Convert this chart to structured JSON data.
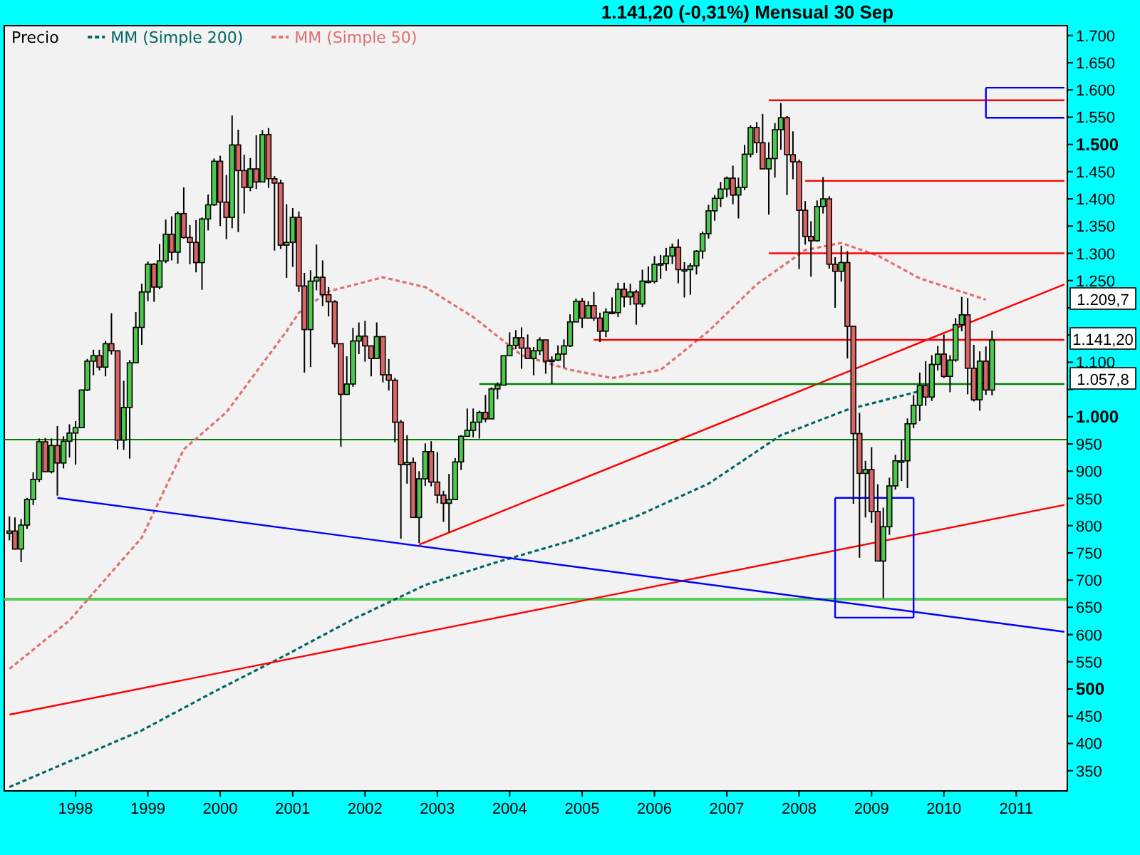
{
  "chart_data": {
    "type": "candlestick",
    "title": "1.141,20 (-0,31%)   Mensual  30 Sep",
    "legend": "top left",
    "xlim": [
      "1997-01-06",
      "2011-09-16"
    ],
    "ylim": [
      313,
      1718
    ],
    "xticks": [
      "1998",
      "1999",
      "2000",
      "2001",
      "2002",
      "2003",
      "2004",
      "2005",
      "2006",
      "2007",
      "2008",
      "2009",
      "2010",
      "2011"
    ],
    "yticks": [
      {
        "value": 350,
        "label": "350"
      },
      {
        "value": 400,
        "label": "400"
      },
      {
        "value": 450,
        "label": "450"
      },
      {
        "value": 500,
        "label": "500"
      },
      {
        "value": 550,
        "label": "550"
      },
      {
        "value": 600,
        "label": "600"
      },
      {
        "value": 650,
        "label": "650"
      },
      {
        "value": 700,
        "label": "700"
      },
      {
        "value": 750,
        "label": "750"
      },
      {
        "value": 800,
        "label": "800"
      },
      {
        "value": 850,
        "label": "850"
      },
      {
        "value": 900,
        "label": "900"
      },
      {
        "value": 950,
        "label": "950"
      },
      {
        "value": 1000,
        "label": "1.000"
      },
      {
        "value": 1050,
        "label": null
      },
      {
        "value": 1100,
        "label": "1.100"
      },
      {
        "value": 1150,
        "label": null
      },
      {
        "value": 1200,
        "label": null
      },
      {
        "value": 1250,
        "label": "1.250"
      },
      {
        "value": 1300,
        "label": "1.300"
      },
      {
        "value": 1350,
        "label": "1.350"
      },
      {
        "value": 1400,
        "label": "1.400"
      },
      {
        "value": 1450,
        "label": "1.450"
      },
      {
        "value": 1500,
        "label": "1.500"
      },
      {
        "value": 1550,
        "label": "1.550"
      },
      {
        "value": 1600,
        "label": "1.600"
      },
      {
        "value": 1650,
        "label": "1.650"
      },
      {
        "value": 1700,
        "label": "1.700"
      }
    ],
    "ref_lines": [
      {
        "axis": "y",
        "value": 958,
        "label": null,
        "color": "#008000"
      },
      {
        "axis": "y",
        "value": 665,
        "label": null,
        "color": "#55cc55"
      }
    ],
    "annotations": [
      "1.209,7",
      "1.141,20",
      "1.057,8"
    ],
    "series": [
      {
        "name": "Precio",
        "x": [
          "1997-02",
          "1997-03",
          "1997-04",
          "1997-05",
          "1997-06",
          "1997-07",
          "1997-08",
          "1997-09",
          "1997-10",
          "1997-11",
          "1997-12",
          "1998-01",
          "1998-02",
          "1998-03",
          "1998-04",
          "1998-05",
          "1998-06",
          "1998-07",
          "1998-08",
          "1998-09",
          "1998-10",
          "1998-11",
          "1998-12",
          "1999-01",
          "1999-02",
          "1999-03",
          "1999-04",
          "1999-05",
          "1999-06",
          "1999-07",
          "1999-08",
          "1999-09",
          "1999-10",
          "1999-11",
          "1999-12",
          "2000-01",
          "2000-02",
          "2000-03",
          "2000-04",
          "2000-05",
          "2000-06",
          "2000-07",
          "2000-08",
          "2000-09",
          "2000-10",
          "2000-11",
          "2000-12",
          "2001-01",
          "2001-02",
          "2001-03",
          "2001-04",
          "2001-05",
          "2001-06",
          "2001-07",
          "2001-08",
          "2001-09",
          "2001-10",
          "2001-11",
          "2001-12",
          "2002-01",
          "2002-02",
          "2002-03",
          "2002-04",
          "2002-05",
          "2002-06",
          "2002-07",
          "2002-08",
          "2002-09",
          "2002-10",
          "2002-11",
          "2002-12",
          "2003-01",
          "2003-02",
          "2003-03",
          "2003-04",
          "2003-05",
          "2003-06",
          "2003-07",
          "2003-08",
          "2003-09",
          "2003-10",
          "2003-11",
          "2003-12",
          "2004-01",
          "2004-02",
          "2004-03",
          "2004-04",
          "2004-05",
          "2004-06",
          "2004-07",
          "2004-08",
          "2004-09",
          "2004-10",
          "2004-11",
          "2004-12",
          "2005-01",
          "2005-02",
          "2005-03",
          "2005-04",
          "2005-05",
          "2005-06",
          "2005-07",
          "2005-08",
          "2005-09",
          "2005-10",
          "2005-11",
          "2005-12",
          "2006-01",
          "2006-02",
          "2006-03",
          "2006-04",
          "2006-05",
          "2006-06",
          "2006-07",
          "2006-08",
          "2006-09",
          "2006-10",
          "2006-11",
          "2006-12",
          "2007-01",
          "2007-02",
          "2007-03",
          "2007-04",
          "2007-05",
          "2007-06",
          "2007-07",
          "2007-08",
          "2007-09",
          "2007-10",
          "2007-11",
          "2007-12",
          "2008-01",
          "2008-02",
          "2008-03",
          "2008-04",
          "2008-05",
          "2008-06",
          "2008-07",
          "2008-08",
          "2008-09",
          "2008-10",
          "2008-11",
          "2008-12",
          "2009-01",
          "2009-02",
          "2009-03",
          "2009-04",
          "2009-05",
          "2009-06",
          "2009-07",
          "2009-08",
          "2009-09",
          "2009-10",
          "2009-11",
          "2009-12",
          "2010-01",
          "2010-02",
          "2010-03",
          "2010-04",
          "2010-05",
          "2010-06",
          "2010-07",
          "2010-08",
          "2010-09"
        ],
        "ohlc": [
          [
            786,
            817,
            773,
            790
          ],
          [
            790,
            815,
            756,
            757
          ],
          [
            757,
            812,
            733,
            801
          ],
          [
            801,
            851,
            794,
            848
          ],
          [
            848,
            898,
            838,
            885
          ],
          [
            885,
            960,
            880,
            954
          ],
          [
            954,
            961,
            898,
            899
          ],
          [
            899,
            960,
            896,
            947
          ],
          [
            947,
            983,
            855,
            915
          ],
          [
            915,
            964,
            905,
            955
          ],
          [
            955,
            986,
            925,
            970
          ],
          [
            970,
            992,
            912,
            980
          ],
          [
            980,
            1050,
            980,
            1049
          ],
          [
            1049,
            1106,
            1047,
            1102
          ],
          [
            1102,
            1123,
            1076,
            1112
          ],
          [
            1112,
            1123,
            1085,
            1091
          ],
          [
            1091,
            1139,
            1074,
            1134
          ],
          [
            1134,
            1190,
            1114,
            1121
          ],
          [
            1121,
            1122,
            940,
            957
          ],
          [
            957,
            1066,
            939,
            1017
          ],
          [
            1017,
            1104,
            923,
            1099
          ],
          [
            1099,
            1192,
            1098,
            1164
          ],
          [
            1164,
            1244,
            1132,
            1229
          ],
          [
            1229,
            1285,
            1212,
            1280
          ],
          [
            1280,
            1282,
            1211,
            1238
          ],
          [
            1238,
            1317,
            1234,
            1286
          ],
          [
            1286,
            1362,
            1282,
            1335
          ],
          [
            1335,
            1368,
            1287,
            1302
          ],
          [
            1302,
            1377,
            1281,
            1373
          ],
          [
            1373,
            1421,
            1327,
            1329
          ],
          [
            1329,
            1352,
            1280,
            1320
          ],
          [
            1320,
            1361,
            1265,
            1283
          ],
          [
            1283,
            1366,
            1233,
            1363
          ],
          [
            1363,
            1408,
            1342,
            1389
          ],
          [
            1389,
            1474,
            1387,
            1469
          ],
          [
            1469,
            1479,
            1350,
            1394
          ],
          [
            1394,
            1444,
            1326,
            1366
          ],
          [
            1366,
            1553,
            1346,
            1499
          ],
          [
            1499,
            1527,
            1339,
            1452
          ],
          [
            1452,
            1481,
            1373,
            1421
          ],
          [
            1421,
            1475,
            1414,
            1455
          ],
          [
            1455,
            1517,
            1418,
            1431
          ],
          [
            1431,
            1526,
            1431,
            1518
          ],
          [
            1518,
            1530,
            1420,
            1437
          ],
          [
            1437,
            1442,
            1305,
            1429
          ],
          [
            1429,
            1435,
            1308,
            1315
          ],
          [
            1315,
            1390,
            1255,
            1320
          ],
          [
            1320,
            1383,
            1275,
            1366
          ],
          [
            1366,
            1377,
            1229,
            1240
          ],
          [
            1240,
            1264,
            1081,
            1160
          ],
          [
            1160,
            1269,
            1091,
            1249
          ],
          [
            1249,
            1316,
            1232,
            1256
          ],
          [
            1256,
            1287,
            1203,
            1224
          ],
          [
            1224,
            1238,
            1184,
            1211
          ],
          [
            1211,
            1214,
            1127,
            1134
          ],
          [
            1134,
            1134,
            945,
            1041
          ],
          [
            1041,
            1111,
            1040,
            1060
          ],
          [
            1060,
            1163,
            1055,
            1139
          ],
          [
            1139,
            1173,
            1115,
            1148
          ],
          [
            1148,
            1176,
            1101,
            1130
          ],
          [
            1130,
            1131,
            1074,
            1107
          ],
          [
            1107,
            1173,
            1106,
            1147
          ],
          [
            1147,
            1147,
            1063,
            1077
          ],
          [
            1077,
            1106,
            1048,
            1067
          ],
          [
            1067,
            1071,
            953,
            990
          ],
          [
            990,
            994,
            776,
            912
          ],
          [
            912,
            966,
            877,
            916
          ],
          [
            916,
            925,
            815,
            815
          ],
          [
            815,
            900,
            768,
            886
          ],
          [
            886,
            951,
            873,
            936
          ],
          [
            936,
            955,
            872,
            880
          ],
          [
            880,
            935,
            841,
            856
          ],
          [
            856,
            864,
            807,
            841
          ],
          [
            841,
            895,
            789,
            848
          ],
          [
            848,
            924,
            847,
            917
          ],
          [
            917,
            966,
            902,
            964
          ],
          [
            964,
            1015,
            963,
            975
          ],
          [
            975,
            1015,
            962,
            990
          ],
          [
            990,
            1011,
            960,
            1008
          ],
          [
            1008,
            1040,
            990,
            996
          ],
          [
            996,
            1054,
            996,
            1051
          ],
          [
            1051,
            1063,
            1032,
            1058
          ],
          [
            1058,
            1112,
            1058,
            1112
          ],
          [
            1112,
            1155,
            1112,
            1131
          ],
          [
            1131,
            1159,
            1124,
            1145
          ],
          [
            1145,
            1164,
            1088,
            1126
          ],
          [
            1126,
            1151,
            1107,
            1107
          ],
          [
            1107,
            1128,
            1076,
            1121
          ],
          [
            1121,
            1146,
            1113,
            1141
          ],
          [
            1141,
            1141,
            1079,
            1102
          ],
          [
            1102,
            1111,
            1060,
            1104
          ],
          [
            1104,
            1131,
            1102,
            1115
          ],
          [
            1115,
            1142,
            1090,
            1130
          ],
          [
            1130,
            1188,
            1128,
            1174
          ],
          [
            1174,
            1217,
            1174,
            1212
          ],
          [
            1212,
            1218,
            1163,
            1181
          ],
          [
            1181,
            1212,
            1180,
            1204
          ],
          [
            1204,
            1229,
            1176,
            1181
          ],
          [
            1181,
            1191,
            1137,
            1157
          ],
          [
            1157,
            1199,
            1146,
            1192
          ],
          [
            1192,
            1219,
            1188,
            1191
          ],
          [
            1191,
            1246,
            1183,
            1234
          ],
          [
            1234,
            1246,
            1201,
            1220
          ],
          [
            1220,
            1244,
            1205,
            1229
          ],
          [
            1229,
            1233,
            1169,
            1207
          ],
          [
            1207,
            1270,
            1201,
            1249
          ],
          [
            1249,
            1276,
            1245,
            1248
          ],
          [
            1248,
            1295,
            1245,
            1280
          ],
          [
            1280,
            1297,
            1253,
            1281
          ],
          [
            1281,
            1310,
            1268,
            1295
          ],
          [
            1295,
            1318,
            1280,
            1311
          ],
          [
            1311,
            1326,
            1245,
            1270
          ],
          [
            1270,
            1284,
            1219,
            1270
          ],
          [
            1270,
            1282,
            1224,
            1277
          ],
          [
            1277,
            1306,
            1261,
            1304
          ],
          [
            1304,
            1340,
            1290,
            1336
          ],
          [
            1336,
            1389,
            1327,
            1378
          ],
          [
            1378,
            1407,
            1360,
            1401
          ],
          [
            1401,
            1431,
            1385,
            1418
          ],
          [
            1418,
            1441,
            1403,
            1438
          ],
          [
            1438,
            1461,
            1390,
            1407
          ],
          [
            1407,
            1439,
            1364,
            1421
          ],
          [
            1421,
            1499,
            1416,
            1482
          ],
          [
            1482,
            1535,
            1476,
            1531
          ],
          [
            1531,
            1541,
            1484,
            1503
          ],
          [
            1503,
            1556,
            1454,
            1455
          ],
          [
            1455,
            1504,
            1371,
            1474
          ],
          [
            1474,
            1539,
            1439,
            1527
          ],
          [
            1527,
            1576,
            1490,
            1549
          ],
          [
            1549,
            1552,
            1407,
            1481
          ],
          [
            1481,
            1524,
            1436,
            1468
          ],
          [
            1468,
            1472,
            1271,
            1379
          ],
          [
            1379,
            1396,
            1316,
            1331
          ],
          [
            1331,
            1359,
            1257,
            1323
          ],
          [
            1323,
            1397,
            1322,
            1386
          ],
          [
            1386,
            1440,
            1373,
            1400
          ],
          [
            1400,
            1405,
            1272,
            1280
          ],
          [
            1280,
            1293,
            1200,
            1267
          ],
          [
            1267,
            1314,
            1248,
            1283
          ],
          [
            1283,
            1304,
            1107,
            1166
          ],
          [
            1166,
            1167,
            840,
            969
          ],
          [
            969,
            1007,
            741,
            896
          ],
          [
            896,
            919,
            815,
            903
          ],
          [
            903,
            944,
            805,
            826
          ],
          [
            826,
            876,
            735,
            735
          ],
          [
            735,
            833,
            667,
            798
          ],
          [
            798,
            888,
            783,
            873
          ],
          [
            873,
            930,
            866,
            919
          ],
          [
            919,
            957,
            882,
            919
          ],
          [
            919,
            997,
            869,
            987
          ],
          [
            987,
            1040,
            979,
            1021
          ],
          [
            1021,
            1081,
            992,
            1057
          ],
          [
            1057,
            1102,
            1020,
            1036
          ],
          [
            1036,
            1113,
            1029,
            1096
          ],
          [
            1096,
            1130,
            1085,
            1115
          ],
          [
            1115,
            1151,
            1071,
            1074
          ],
          [
            1074,
            1113,
            1045,
            1104
          ],
          [
            1104,
            1181,
            1101,
            1169
          ],
          [
            1169,
            1220,
            1157,
            1187
          ],
          [
            1187,
            1218,
            1041,
            1089
          ],
          [
            1089,
            1132,
            1028,
            1031
          ],
          [
            1031,
            1120,
            1011,
            1102
          ],
          [
            1102,
            1129,
            1040,
            1049
          ],
          [
            1049,
            1158,
            1039,
            1141
          ]
        ]
      },
      {
        "type": "line",
        "name": "MM (Simple 200)",
        "color": "#006666",
        "line_style": "dashed",
        "x": [
          "1997-02",
          "1998-12",
          "1999-12",
          "2000-12",
          "2001-11",
          "2002-11",
          "2003-10",
          "2004-11",
          "2005-10",
          "2006-10",
          "2007-10",
          "2008-09",
          "2009-09"
        ],
        "values": [
          320,
          424,
          495,
          563,
          628,
          691,
          730,
          772,
          817,
          877,
          966,
          1013,
          1047
        ]
      },
      {
        "type": "line",
        "name": "MM (Simple 50)",
        "color": "#e07070",
        "line_style": "dashed",
        "x": [
          "1997-02",
          "1997-12",
          "1998-12",
          "1999-07",
          "2000-02",
          "2000-12",
          "2001-02",
          "2001-07",
          "2002-04",
          "2002-11",
          "2003-07",
          "2004-03",
          "2004-11",
          "2005-06",
          "2006-02",
          "2006-10",
          "2007-06",
          "2008-02",
          "2008-08",
          "2009-02",
          "2009-09",
          "2010-08"
        ],
        "values": [
          537,
          626,
          778,
          940,
          1008,
          1157,
          1191,
          1230,
          1256,
          1238,
          1183,
          1113,
          1086,
          1071,
          1086,
          1157,
          1243,
          1306,
          1319,
          1296,
          1254,
          1215
        ]
      },
      {
        "type": "line",
        "color": "#ff0000",
        "x": [
          "1997-02",
          "2011-09"
        ],
        "values": [
          453,
          838
        ]
      },
      {
        "type": "line",
        "color": "#0000ff",
        "x": [
          "1997-10",
          "2011-09"
        ],
        "values": [
          851,
          605
        ]
      },
      {
        "type": "line",
        "color": "#ff0000",
        "x": [
          "2002-10",
          "2011-09"
        ],
        "values": [
          765,
          1243
        ]
      },
      {
        "type": "line",
        "color": "#ff0000",
        "x": [
          "2007-08",
          "2011-09"
        ],
        "values": [
          1581,
          1581
        ]
      },
      {
        "type": "line",
        "color": "#ff0000",
        "x": [
          "2008-02",
          "2011-09"
        ],
        "values": [
          1433,
          1433
        ]
      },
      {
        "type": "line",
        "color": "#ff0000",
        "x": [
          "2007-08",
          "2011-09"
        ],
        "values": [
          1300,
          1300
        ]
      },
      {
        "type": "line",
        "color": "#ff0000",
        "x": [
          "2005-03",
          "2011-09"
        ],
        "values": [
          1141,
          1141
        ]
      },
      {
        "type": "line",
        "color": "#008000",
        "x": [
          "2003-08",
          "2011-09"
        ],
        "values": [
          1060,
          1060
        ]
      },
      {
        "type": "line",
        "color": "#0000ff",
        "x": [
          "2008-07",
          "2009-08"
        ],
        "values": [
          851,
          851
        ]
      },
      {
        "type": "line",
        "color": "#0000ff",
        "x": [
          "2008-07",
          "2009-08"
        ],
        "values": [
          631,
          631
        ]
      },
      {
        "type": "line",
        "color": "#0000ff",
        "x": [
          "2010-08",
          "2011-09"
        ],
        "values": [
          1604,
          1604
        ]
      },
      {
        "type": "line",
        "color": "#0000ff",
        "x": [
          "2010-08",
          "2011-09"
        ],
        "values": [
          1549,
          1549
        ]
      },
      {
        "type": "line",
        "color": "#0000ff",
        "x": [
          "2008-07",
          "2008-07"
        ],
        "values": [
          631,
          851
        ]
      },
      {
        "type": "line",
        "color": "#0000ff",
        "x": [
          "2009-08",
          "2009-08"
        ],
        "values": [
          631,
          851
        ]
      },
      {
        "type": "line",
        "color": "#0000ff",
        "x": [
          "2010-08",
          "2010-08"
        ],
        "values": [
          1549,
          1604
        ]
      }
    ]
  }
}
